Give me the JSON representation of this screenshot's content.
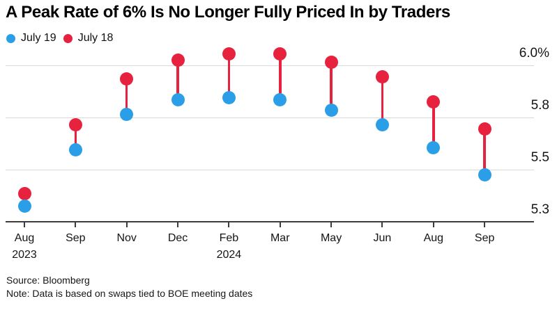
{
  "title": "A Peak Rate of 6% Is No Longer Fully Priced In by Traders",
  "legend": {
    "items": [
      {
        "label": "July 19",
        "color": "#2a9fe8"
      },
      {
        "label": "July 18",
        "color": "#e6223e"
      }
    ]
  },
  "footer": {
    "source": "Source: Bloomberg",
    "note": "Note: Data is based on swaps tied to BOE meeting dates"
  },
  "chart_data": {
    "type": "scatter",
    "variant": "dumbbell",
    "title": "A Peak Rate of 6% Is No Longer Fully Priced In by Traders",
    "categories": [
      "Aug",
      "Sep",
      "Nov",
      "Dec",
      "Feb",
      "Mar",
      "May",
      "Jun",
      "Aug",
      "Sep"
    ],
    "category_sublabels": {
      "0": "2023",
      "4": "2024"
    },
    "series": [
      {
        "name": "July 19",
        "color": "#2a9fe8",
        "values": [
          5.33,
          5.6,
          5.77,
          5.84,
          5.85,
          5.84,
          5.79,
          5.72,
          5.61,
          5.48
        ]
      },
      {
        "name": "July 18",
        "color": "#e6223e",
        "values": [
          5.39,
          5.72,
          5.94,
          6.03,
          6.06,
          6.06,
          6.02,
          5.95,
          5.83,
          5.7
        ]
      }
    ],
    "unit": "%",
    "xlabel": "",
    "ylabel": "",
    "ylim": [
      5.25,
      6.11
    ],
    "yticks": [
      {
        "value": 5.25,
        "label": "5.3"
      },
      {
        "value": 5.5,
        "label": "5.5"
      },
      {
        "value": 5.75,
        "label": "5.8"
      },
      {
        "value": 6.0,
        "label": "6.0%"
      }
    ],
    "grid": "horizontal",
    "legend_position": "top-left",
    "source": "Source: Bloomberg",
    "note": "Note: Data is based on swaps tied to BOE meeting dates"
  }
}
